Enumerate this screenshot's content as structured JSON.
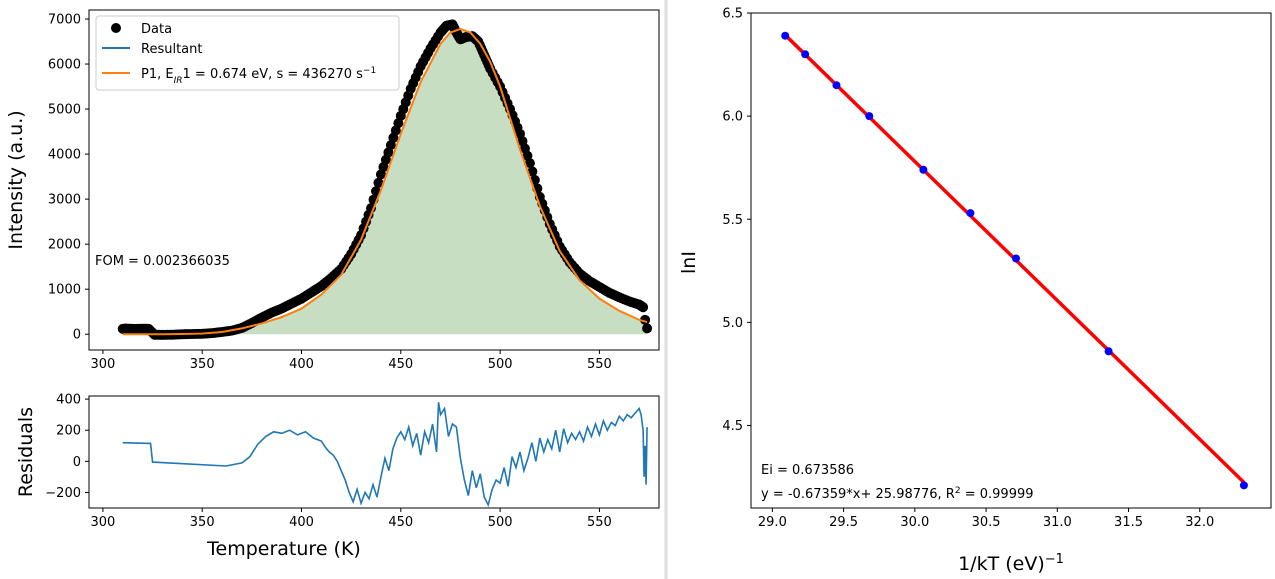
{
  "chart_data": [
    {
      "id": "glow",
      "type": "scatter",
      "xlim": [
        293,
        580
      ],
      "ylim": [
        -350,
        7200
      ],
      "x_ticks": [
        300,
        350,
        400,
        450,
        500,
        550
      ],
      "y_ticks": [
        0,
        1000,
        2000,
        3000,
        4000,
        5000,
        6000,
        7000
      ],
      "ylabel": "Intensity  (a.u.)",
      "legend": [
        "Data",
        "Resultant",
        "P1, E_IR1 = 0.674 eV, s = 436270 s^-1"
      ],
      "legend_placement": "top-left",
      "annotation": "FOM = 0.002366035",
      "fill_color": "#c8dec3",
      "fit_color": "#ff7f0e",
      "data_color": "#000000",
      "data": {
        "x": [
          310,
          312,
          316,
          320,
          323,
          326,
          330,
          335,
          340,
          345,
          350,
          355,
          360,
          365,
          370,
          375,
          380,
          385,
          390,
          395,
          400,
          405,
          410,
          415,
          420,
          425,
          430,
          435,
          440,
          445,
          450,
          455,
          460,
          465,
          470,
          473,
          476,
          478,
          480,
          483,
          486,
          489,
          492,
          495,
          500,
          505,
          510,
          515,
          520,
          525,
          530,
          535,
          540,
          545,
          550,
          555,
          560,
          565,
          570,
          572,
          573,
          574
        ],
        "y": [
          120,
          125,
          118,
          122,
          120,
          -10,
          -15,
          -10,
          0,
          5,
          10,
          25,
          50,
          80,
          140,
          250,
          370,
          480,
          570,
          680,
          790,
          930,
          1070,
          1250,
          1450,
          1780,
          2200,
          2800,
          3550,
          4200,
          4850,
          5450,
          5950,
          6350,
          6700,
          6850,
          6880,
          6700,
          6550,
          6600,
          6620,
          6500,
          6200,
          5900,
          5500,
          5000,
          4450,
          3800,
          3050,
          2450,
          1950,
          1600,
          1350,
          1180,
          1050,
          920,
          820,
          730,
          660,
          600,
          320,
          130
        ]
      },
      "fit": {
        "x": [
          310,
          320,
          330,
          340,
          350,
          360,
          370,
          380,
          390,
          400,
          410,
          420,
          430,
          440,
          450,
          460,
          470,
          475,
          480,
          485,
          490,
          495,
          500,
          510,
          520,
          530,
          540,
          550,
          560,
          570,
          574
        ],
        "y": [
          0,
          0,
          1,
          4,
          15,
          50,
          130,
          240,
          380,
          570,
          880,
          1320,
          2100,
          3200,
          4450,
          5600,
          6450,
          6700,
          6780,
          6700,
          6450,
          6050,
          5500,
          4100,
          2850,
          1850,
          1200,
          790,
          520,
          320,
          270
        ]
      }
    },
    {
      "id": "residuals",
      "type": "line",
      "xlim": [
        293,
        580
      ],
      "ylim": [
        -300,
        420
      ],
      "x_ticks": [
        300,
        350,
        400,
        450,
        500,
        550
      ],
      "y_ticks": [
        -200,
        0,
        200,
        400
      ],
      "xlabel": "Temperature (K)",
      "ylabel": "Residuals",
      "series": [
        {
          "color": "#1f77b4",
          "x": [
            310,
            324,
            325,
            362,
            370,
            374,
            378,
            382,
            386,
            390,
            394,
            398,
            402,
            406,
            410,
            412,
            414,
            416,
            418,
            420,
            422,
            424,
            426,
            428,
            430,
            432,
            434,
            436,
            438,
            440,
            442,
            444,
            446,
            448,
            450,
            452,
            454,
            456,
            458,
            460,
            462,
            464,
            466,
            468,
            469,
            470,
            472,
            474,
            476,
            478,
            480,
            482,
            484,
            486,
            488,
            490,
            492,
            494,
            496,
            498,
            500,
            502,
            504,
            506,
            508,
            510,
            512,
            514,
            516,
            518,
            520,
            522,
            524,
            526,
            528,
            530,
            532,
            534,
            536,
            538,
            540,
            542,
            544,
            546,
            548,
            550,
            552,
            554,
            556,
            558,
            560,
            562,
            564,
            566,
            568,
            570,
            571,
            572,
            572.5,
            573,
            573.5,
            574
          ],
          "y": [
            120,
            115,
            -5,
            -30,
            -10,
            30,
            110,
            160,
            190,
            180,
            200,
            170,
            190,
            150,
            130,
            90,
            60,
            40,
            0,
            -60,
            -120,
            -200,
            -260,
            -180,
            -270,
            -200,
            -240,
            -150,
            -230,
            -100,
            20,
            -60,
            80,
            150,
            190,
            140,
            220,
            100,
            180,
            40,
            190,
            120,
            240,
            60,
            380,
            300,
            340,
            160,
            240,
            220,
            20,
            -120,
            -220,
            -60,
            -170,
            -80,
            -230,
            -280,
            -180,
            -120,
            -140,
            -40,
            -160,
            30,
            -40,
            60,
            -60,
            20,
            120,
            0,
            150,
            60,
            140,
            80,
            200,
            60,
            210,
            120,
            180,
            140,
            190,
            130,
            220,
            160,
            240,
            170,
            260,
            200,
            250,
            230,
            290,
            260,
            300,
            280,
            310,
            340,
            300,
            200,
            -100,
            100,
            -150,
            220
          ]
        }
      ]
    },
    {
      "id": "arrhenius",
      "type": "scatter",
      "xlim": [
        28.85,
        32.5
      ],
      "ylim": [
        4.1,
        6.5
      ],
      "x_ticks": [
        29.0,
        29.5,
        30.0,
        30.5,
        31.0,
        31.5,
        32.0
      ],
      "y_ticks": [
        4.5,
        5.0,
        5.5,
        6.0,
        6.5
      ],
      "xlabel": "1/kT (eV)^-1",
      "ylabel": "lnI",
      "line_color": "#ff0000",
      "point_color": "#0000ff",
      "annotations": [
        "Ei = 0.673586",
        "y = -0.67359*x+ 25.98776, R² = 0.99999"
      ],
      "points": {
        "x": [
          29.09,
          29.23,
          29.45,
          29.68,
          30.06,
          30.39,
          30.71,
          31.36,
          32.31
        ],
        "y": [
          6.39,
          6.3,
          6.15,
          6.0,
          5.74,
          5.53,
          5.31,
          4.86,
          4.21
        ]
      },
      "fit_line": {
        "slope": -0.67359,
        "intercept": 25.98776,
        "x_range": [
          29.09,
          32.31
        ]
      }
    }
  ]
}
